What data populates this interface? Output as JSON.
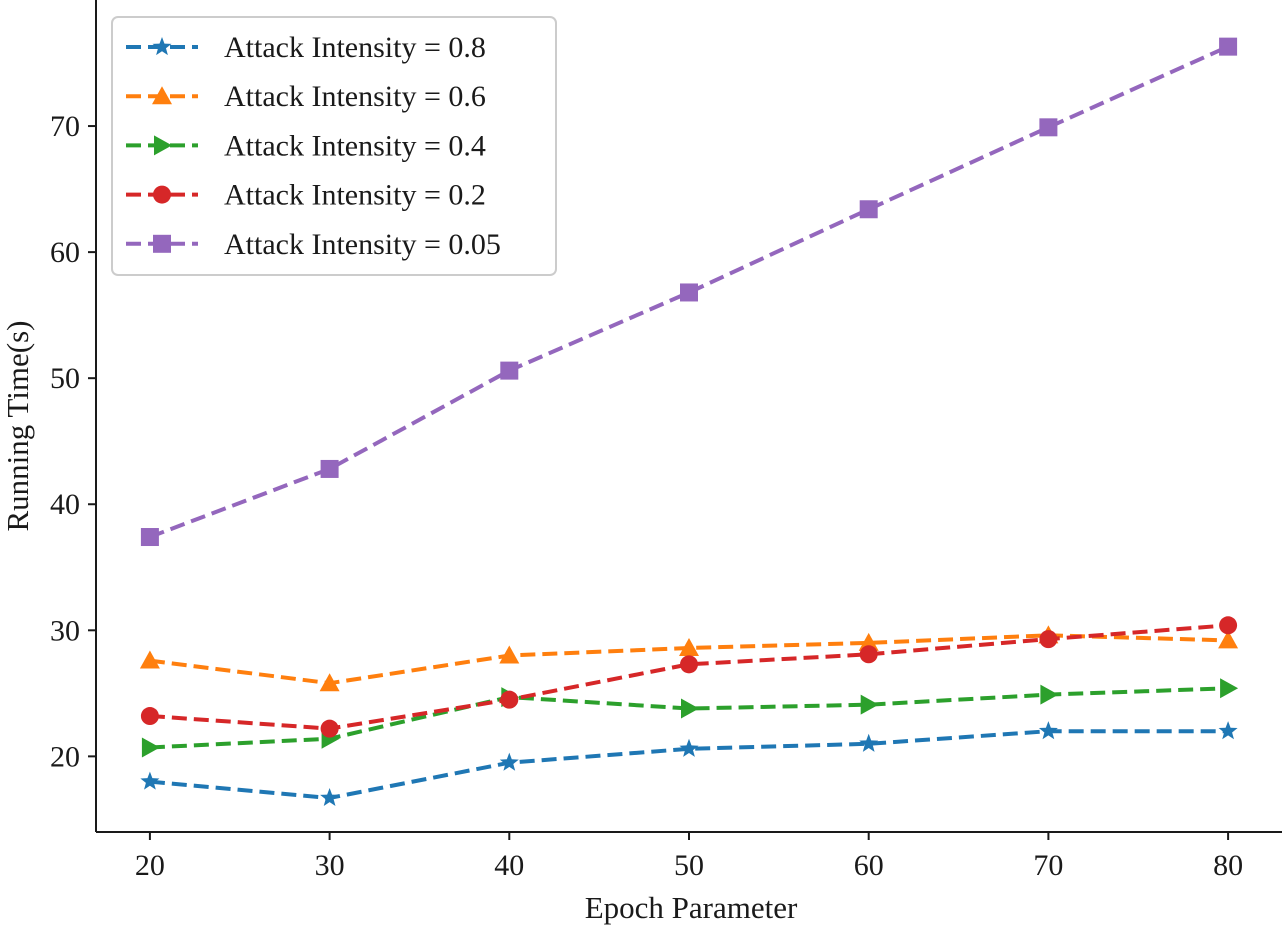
{
  "chart_data": {
    "type": "line",
    "title": "",
    "xlabel": "Epoch Parameter",
    "ylabel": "Running Time(s)",
    "x": [
      20,
      30,
      40,
      50,
      60,
      70,
      80
    ],
    "x_ticks": [
      20,
      30,
      40,
      50,
      60,
      70,
      80
    ],
    "y_ticks": [
      20,
      30,
      40,
      50,
      60,
      70
    ],
    "xlim": [
      17,
      83
    ],
    "ylim": [
      14,
      80
    ],
    "grid": false,
    "legend_position": "top-left",
    "series": [
      {
        "name": "Attack Intensity = 0.8",
        "marker": "star",
        "color": "#1f77b4",
        "values": [
          18.0,
          16.7,
          19.5,
          20.6,
          21.0,
          22.0,
          22.0
        ]
      },
      {
        "name": "Attack Intensity = 0.6",
        "marker": "triangle-up",
        "color": "#ff7f0e",
        "values": [
          27.6,
          25.8,
          28.0,
          28.6,
          29.0,
          29.6,
          29.2
        ]
      },
      {
        "name": "Attack Intensity = 0.4",
        "marker": "triangle-right",
        "color": "#2ca02c",
        "values": [
          20.7,
          21.4,
          24.7,
          23.8,
          24.1,
          24.9,
          25.4
        ]
      },
      {
        "name": "Attack Intensity = 0.2",
        "marker": "circle",
        "color": "#d62728",
        "values": [
          23.2,
          22.2,
          24.5,
          27.3,
          28.1,
          29.3,
          30.4
        ]
      },
      {
        "name": "Attack Intensity = 0.05",
        "marker": "square",
        "color": "#9467bd",
        "values": [
          37.4,
          42.8,
          50.6,
          56.8,
          63.4,
          69.9,
          76.3
        ]
      }
    ]
  }
}
